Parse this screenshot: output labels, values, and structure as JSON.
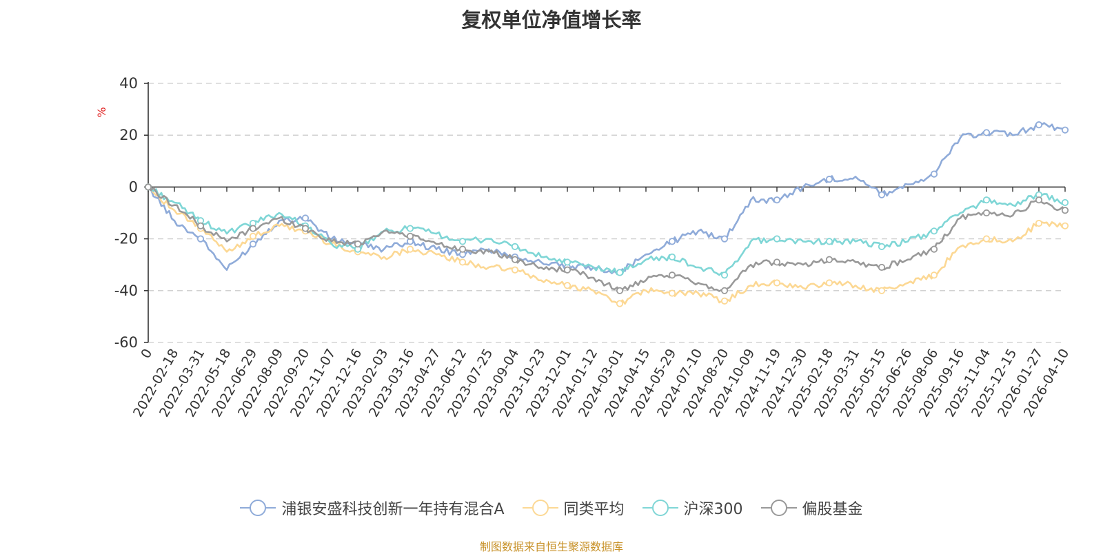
{
  "title": "复权单位净值增长率",
  "source_text": "制图数据来自恒生聚源数据库",
  "chart_data": {
    "type": "line",
    "title": "复权单位净值增长率",
    "ylabel": "%",
    "ylim": [
      -60,
      40
    ],
    "yticks": [
      40,
      20,
      0,
      -20,
      -40,
      -60
    ],
    "grid": true,
    "legend_position": "bottom",
    "categories": [
      "0",
      "2022-02-18",
      "2022-03-31",
      "2022-05-18",
      "2022-06-29",
      "2022-08-09",
      "2022-09-20",
      "2022-11-07",
      "2022-12-16",
      "2023-02-03",
      "2023-03-16",
      "2023-04-27",
      "2023-06-12",
      "2023-07-25",
      "2023-09-04",
      "2023-10-23",
      "2023-12-01",
      "2024-01-12",
      "2024-03-01",
      "2024-04-15",
      "2024-05-29",
      "2024-07-10",
      "2024-08-20",
      "2024-10-09",
      "2024-11-19",
      "2024-12-30",
      "2025-02-18",
      "2025-03-31",
      "2025-05-15",
      "2025-06-26",
      "2025-08-06",
      "2025-09-16",
      "2025-11-04",
      "2025-12-15",
      "2026-01-27",
      "2026-04-10"
    ],
    "series": [
      {
        "name": "浦银安盛科技创新一年持有混合A",
        "color": "#8fabd9",
        "values": [
          0,
          -13,
          -20,
          -32,
          -22,
          -13,
          -12,
          -20,
          -22,
          -24,
          -21,
          -24,
          -26,
          -24,
          -27,
          -29,
          -31,
          -31,
          -33,
          -26,
          -21,
          -17,
          -20,
          -5,
          -5,
          0,
          3,
          4,
          -3,
          1,
          5,
          19,
          21,
          20,
          24,
          22
        ]
      },
      {
        "name": "同类平均",
        "color": "#fcd894",
        "values": [
          0,
          -9,
          -16,
          -25,
          -19,
          -15,
          -17,
          -22,
          -25,
          -27,
          -24,
          -26,
          -29,
          -31,
          -32,
          -36,
          -38,
          -40,
          -45,
          -40,
          -41,
          -41,
          -44,
          -38,
          -37,
          -39,
          -37,
          -38,
          -40,
          -37,
          -34,
          -23,
          -20,
          -21,
          -14,
          -15
        ]
      },
      {
        "name": "沪深300",
        "color": "#7fd6d6",
        "values": [
          0,
          -6,
          -13,
          -18,
          -14,
          -10,
          -15,
          -22,
          -24,
          -17,
          -16,
          -18,
          -21,
          -20,
          -23,
          -27,
          -29,
          -31,
          -33,
          -28,
          -27,
          -31,
          -34,
          -21,
          -20,
          -21,
          -21,
          -21,
          -23,
          -21,
          -17,
          -10,
          -5,
          -7,
          -3,
          -6
        ]
      },
      {
        "name": "偏股基金",
        "color": "#999999",
        "values": [
          0,
          -7,
          -15,
          -21,
          -16,
          -12,
          -16,
          -21,
          -22,
          -17,
          -19,
          -22,
          -24,
          -25,
          -28,
          -31,
          -32,
          -35,
          -40,
          -36,
          -34,
          -37,
          -40,
          -30,
          -29,
          -30,
          -28,
          -29,
          -31,
          -28,
          -24,
          -12,
          -10,
          -11,
          -5,
          -9
        ]
      }
    ]
  }
}
